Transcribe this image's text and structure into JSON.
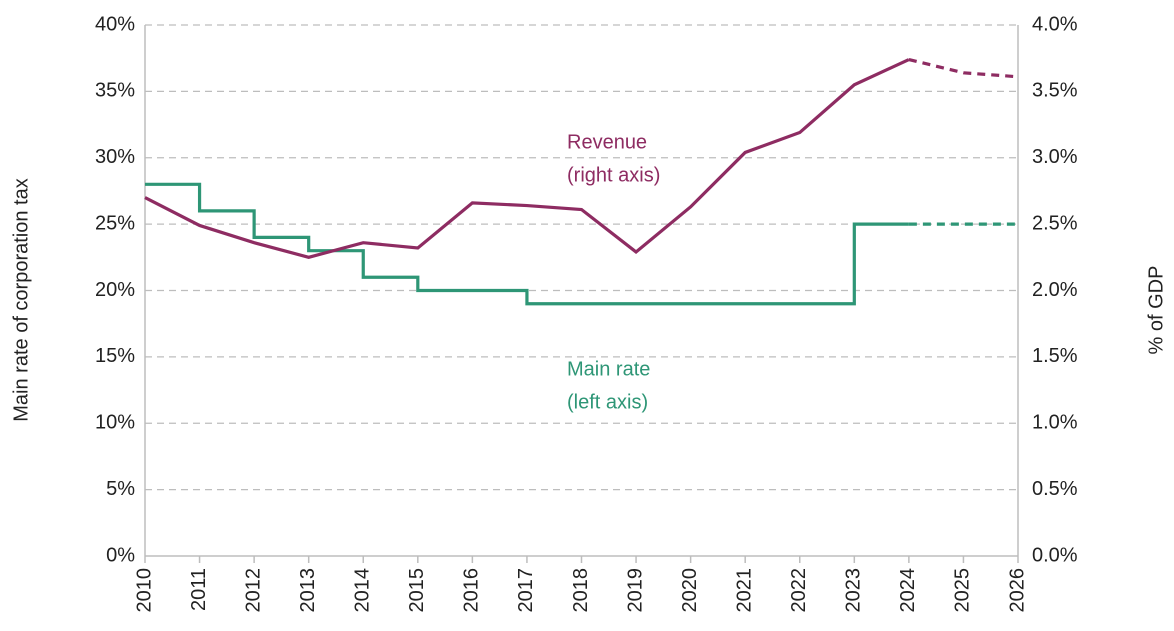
{
  "chart_data": {
    "type": "line",
    "x": [
      2010,
      2011,
      2012,
      2013,
      2014,
      2015,
      2016,
      2017,
      2018,
      2019,
      2020,
      2021,
      2022,
      2023,
      2024,
      2025,
      2026
    ],
    "xlim": [
      2010,
      2026
    ],
    "xticks": [
      2010,
      2011,
      2012,
      2013,
      2014,
      2015,
      2016,
      2017,
      2018,
      2019,
      2020,
      2021,
      2022,
      2023,
      2024,
      2025,
      2026
    ],
    "y_label": "Main rate of corporation tax",
    "y2_label": "% of GDP",
    "ylim": [
      0,
      40
    ],
    "yticks": [
      {
        "value": 0,
        "label": "0%"
      },
      {
        "value": 5,
        "label": "5%"
      },
      {
        "value": 10,
        "label": "10%"
      },
      {
        "value": 15,
        "label": "15%"
      },
      {
        "value": 20,
        "label": "20%"
      },
      {
        "value": 25,
        "label": "25%"
      },
      {
        "value": 30,
        "label": "30%"
      },
      {
        "value": 35,
        "label": "35%"
      },
      {
        "value": 40,
        "label": "40%"
      }
    ],
    "y2lim": [
      0,
      4
    ],
    "y2ticks": [
      {
        "value": 0,
        "label": "0.0%"
      },
      {
        "value": 0.5,
        "label": "0.5%"
      },
      {
        "value": 1,
        "label": "1.0%"
      },
      {
        "value": 1.5,
        "label": "1.5%"
      },
      {
        "value": 2,
        "label": "2.0%"
      },
      {
        "value": 2.5,
        "label": "2.5%"
      },
      {
        "value": 3,
        "label": "3.0%"
      },
      {
        "value": 3.5,
        "label": "3.5%"
      },
      {
        "value": 4,
        "label": "4.0%"
      }
    ],
    "grid": true,
    "projection_from": 2024,
    "series": [
      {
        "name": "Main rate",
        "note": "(left axis)",
        "color": "#2e9676",
        "step": true,
        "values": [
          28,
          26,
          24,
          23,
          21,
          20,
          20,
          19,
          19,
          19,
          19,
          19,
          19,
          25,
          25,
          25,
          25
        ]
      },
      {
        "name": "Revenue",
        "note": "(right axis)",
        "color": "#8e2c62",
        "axis": "y2",
        "values": [
          2.7,
          2.49,
          2.36,
          2.25,
          2.36,
          2.32,
          2.66,
          2.64,
          2.61,
          2.29,
          2.63,
          3.04,
          3.19,
          3.55,
          3.74,
          3.64,
          3.61
        ]
      }
    ]
  }
}
